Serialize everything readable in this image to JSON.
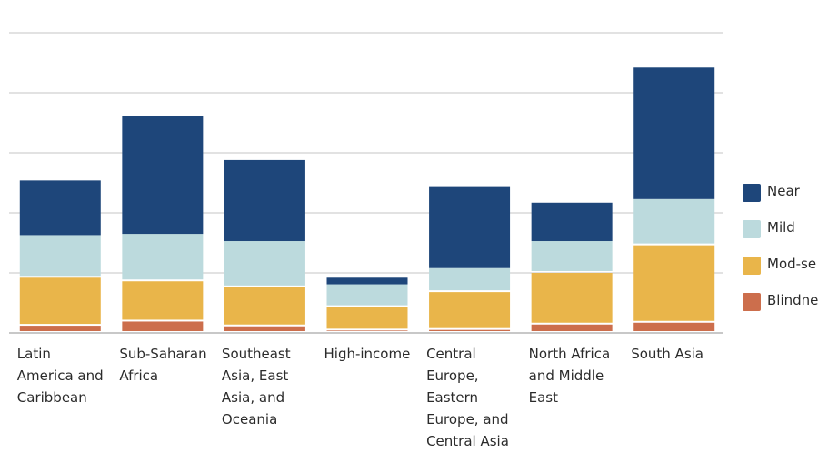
{
  "chart_data": {
    "type": "bar",
    "stacked": true,
    "categories": [
      "Latin America and Caribbean",
      "Sub-Saharan Africa",
      "Southeast Asia, East Asia, and Oceania",
      "High-income",
      "Central Europe, Eastern Europe, and Central Asia",
      "North Africa and Middle East",
      "South Asia"
    ],
    "category_lines": [
      [
        "Latin",
        "America and",
        "Caribbean"
      ],
      [
        "Sub-Saharan",
        "Africa"
      ],
      [
        "Southeast",
        "Asia, East",
        "Asia, and",
        "Oceania"
      ],
      [
        "High-income"
      ],
      [
        "Central",
        "Europe,",
        "Eastern",
        "Europe, and",
        "Central Asia"
      ],
      [
        "North Africa",
        "and Middle",
        "East"
      ],
      [
        "South Asia"
      ]
    ],
    "series": [
      {
        "name": "Blindness",
        "color": "#cc6e4c",
        "values": [
          0.12,
          0.19,
          0.11,
          0.04,
          0.05,
          0.14,
          0.17
        ]
      },
      {
        "name": "Mod-severe",
        "color": "#e9b54a",
        "values": [
          0.8,
          0.67,
          0.65,
          0.39,
          0.63,
          0.86,
          1.29
        ]
      },
      {
        "name": "Mild",
        "color": "#bcdadd",
        "values": [
          0.71,
          0.79,
          0.77,
          0.38,
          0.4,
          0.53,
          0.77
        ]
      },
      {
        "name": "Near",
        "color": "#1e467a",
        "values": [
          0.91,
          1.97,
          1.35,
          0.11,
          1.35,
          0.64,
          2.19
        ]
      }
    ],
    "legend_labels": [
      "Near",
      "Mild",
      "Mod-se",
      "Blindne"
    ],
    "ylim": [
      0,
      5
    ],
    "gridlines": [
      1,
      2,
      3,
      4,
      5
    ],
    "grid": true,
    "y_tick_labels_visible": false,
    "legend_position": "right"
  }
}
